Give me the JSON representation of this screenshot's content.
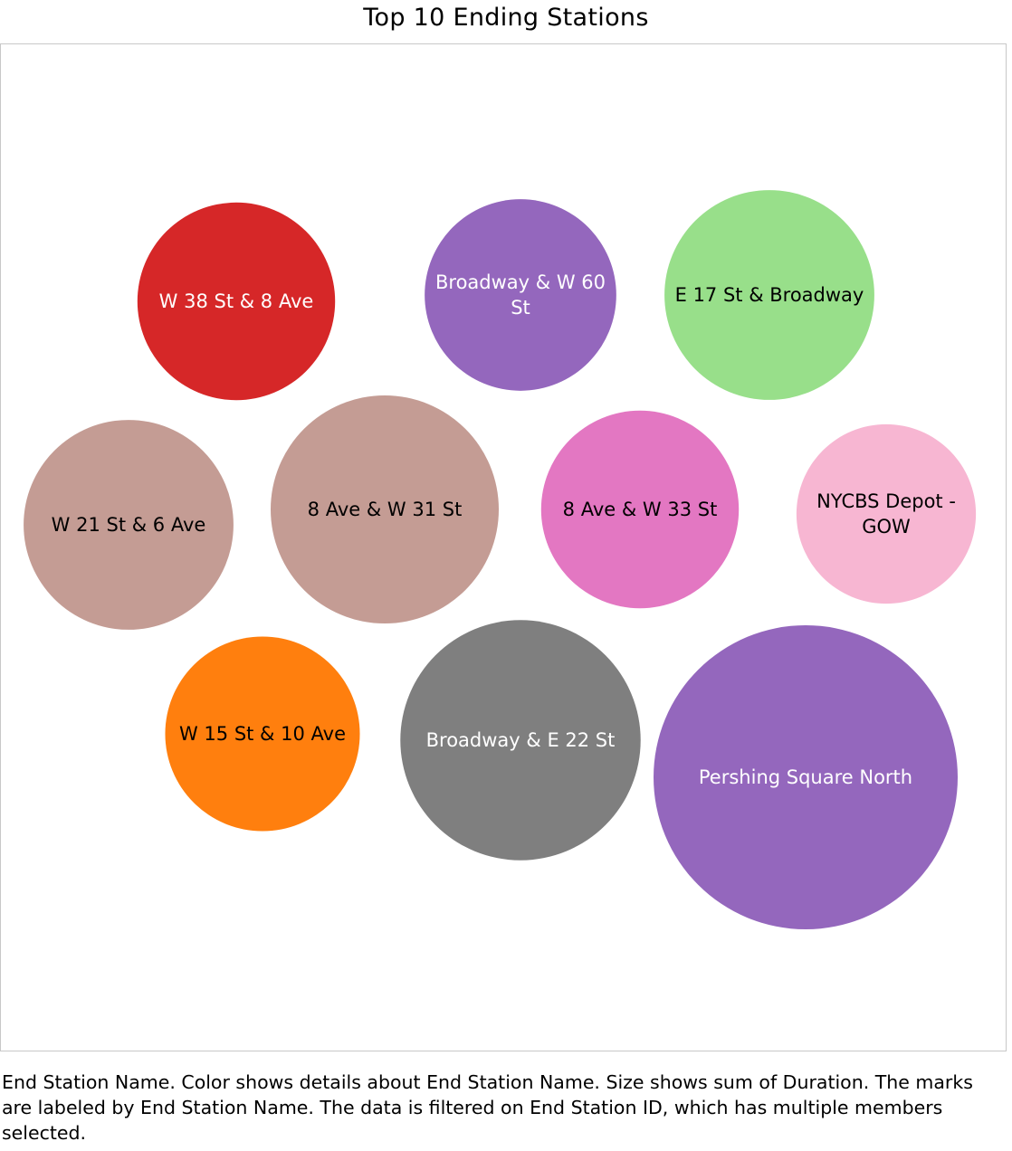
{
  "chart_data": {
    "type": "packed_bubble",
    "title": "Top 10 Ending Stations",
    "size_measure": "sum of Duration",
    "color_dimension": "End Station Name",
    "bubbles": [
      {
        "name": "W 38 St & 8 Ave",
        "relative_size": 0.65,
        "color": "#d62728",
        "label_color": "#ffffff"
      },
      {
        "name": "Broadway & W 60 St",
        "relative_size": 0.63,
        "color": "#9467bd",
        "label_color": "#ffffff"
      },
      {
        "name": "E 17 St & Broadway",
        "relative_size": 0.69,
        "color": "#98df8a",
        "label_color": "#000000"
      },
      {
        "name": "W 21 St & 6 Ave",
        "relative_size": 0.69,
        "color": "#c49c94",
        "label_color": "#000000"
      },
      {
        "name": "8 Ave & W 31 St",
        "relative_size": 0.75,
        "color": "#c49c94",
        "label_color": "#000000"
      },
      {
        "name": "8 Ave & W 33 St",
        "relative_size": 0.65,
        "color": "#e377c2",
        "label_color": "#000000"
      },
      {
        "name": "NYCBS Depot - GOW",
        "relative_size": 0.59,
        "color": "#f7b6d2",
        "label_color": "#000000"
      },
      {
        "name": "W 15 St & 10 Ave",
        "relative_size": 0.64,
        "color": "#ff7f0e",
        "label_color": "#000000"
      },
      {
        "name": "Broadway & E 22 St",
        "relative_size": 0.79,
        "color": "#7f7f7f",
        "label_color": "#ffffff"
      },
      {
        "name": "Pershing Square North",
        "relative_size": 1.0,
        "color": "#9467bd",
        "label_color": "#ffffff"
      }
    ]
  },
  "caption": "End Station Name.  Color shows details about End Station Name.  Size shows sum of Duration. The marks are labeled by End Station Name. The data is filtered on End Station ID, which has multiple members selected."
}
